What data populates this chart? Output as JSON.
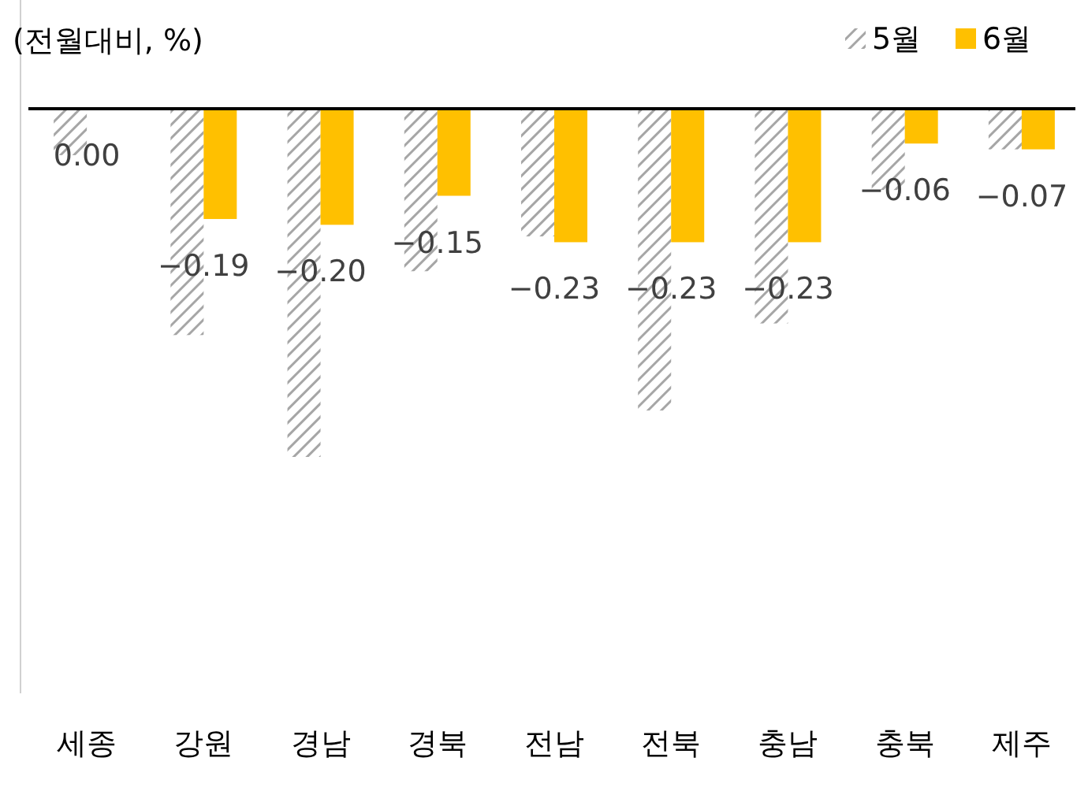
{
  "chart_data": {
    "type": "bar",
    "ylabel": "(전월대비, %)",
    "categories": [
      "세종",
      "강원",
      "경남",
      "경북",
      "전남",
      "전북",
      "충남",
      "충북",
      "제주"
    ],
    "series": [
      {
        "name": "5월",
        "color": "#a6a6a6",
        "values": [
          -0.08,
          -0.39,
          -0.6,
          -0.28,
          -0.22,
          -0.52,
          -0.37,
          -0.14,
          -0.07
        ]
      },
      {
        "name": "6월",
        "color": "#ffc000",
        "values": [
          0,
          -0.19,
          -0.2,
          -0.15,
          -0.23,
          -0.23,
          -0.23,
          -0.06,
          -0.07
        ],
        "value_labels": [
          "0.00",
          "−0.19",
          "−0.20",
          "−0.15",
          "−0.23",
          "−0.23",
          "−0.23",
          "−0.06",
          "−0.07"
        ]
      }
    ],
    "legend": "top right"
  }
}
